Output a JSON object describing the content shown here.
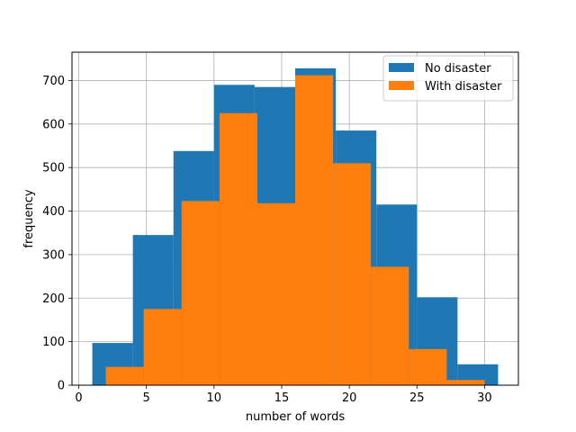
{
  "chart_data": {
    "type": "bar",
    "subtype": "histogram",
    "xlabel": "number of words",
    "ylabel": "frequency",
    "xlim": [
      -0.5,
      32.5
    ],
    "ylim": [
      0,
      765
    ],
    "xticks": [
      0,
      5,
      10,
      15,
      20,
      25,
      30
    ],
    "yticks": [
      0,
      100,
      200,
      300,
      400,
      500,
      600,
      700
    ],
    "grid": true,
    "legend_position": "top-right",
    "series": [
      {
        "name": "No disaster",
        "color": "#1f77b4",
        "bin_edges": [
          1,
          4,
          7,
          10,
          13,
          16,
          19,
          22,
          25,
          28,
          31
        ],
        "values": [
          97,
          345,
          538,
          690,
          685,
          728,
          585,
          415,
          202,
          48
        ]
      },
      {
        "name": "With disaster",
        "color": "#ff7f0e",
        "bin_edges": [
          2,
          4.8,
          7.6,
          10.4,
          13.2,
          16,
          18.8,
          21.6,
          24.4,
          27.2,
          30
        ],
        "values": [
          42,
          175,
          423,
          625,
          418,
          712,
          510,
          272,
          83,
          12
        ]
      }
    ]
  }
}
